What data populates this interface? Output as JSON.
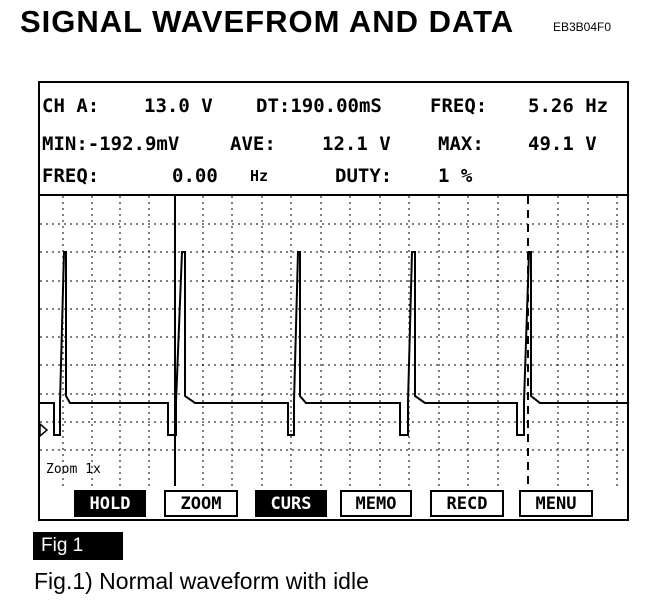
{
  "page": {
    "title": "SIGNAL WAVEFROM AND DATA",
    "code": "EB3B04F0"
  },
  "readout": {
    "ch": "CH A:",
    "ch_value": "13.0 V",
    "dt": "DT:190.00mS",
    "freq_label": "FREQ:",
    "freq_value": "5.26 Hz",
    "min": "MIN:-192.9mV",
    "ave_label": "AVE:",
    "ave_value": "12.1 V",
    "max_label": "MAX:",
    "max_value": "49.1 V",
    "freq2_label": "FREQ:",
    "freq2_value": "0.00",
    "freq2_unit": "Hz",
    "duty_label": "DUTY:",
    "duty_value": "1 %"
  },
  "zoom_label": "Zoom 1x",
  "softkeys": [
    {
      "label": "HOLD",
      "active": true
    },
    {
      "label": "ZOOM",
      "active": false
    },
    {
      "label": "CURS",
      "active": true
    },
    {
      "label": "MEMO",
      "active": false
    },
    {
      "label": "RECD",
      "active": false
    },
    {
      "label": "MENU",
      "active": false
    }
  ],
  "figure": {
    "tag": "Fig 1",
    "caption": "Fig.1) Normal waveform with idle"
  }
}
